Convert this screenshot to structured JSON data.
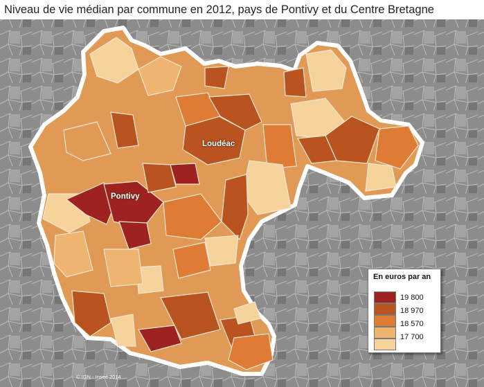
{
  "title": "Niveau de vie médian par commune en 2012, pays de Pontivy et du Centre Bretagne",
  "map": {
    "places": [
      {
        "name": "Loudéac"
      },
      {
        "name": "Pontivy"
      }
    ],
    "legend": {
      "title": "En euros par an",
      "classes": [
        {
          "label": "19 800",
          "color": "#9e2320"
        },
        {
          "label": "18 970",
          "color": "#b9531f"
        },
        {
          "label": "18 570",
          "color": "#de7b35"
        },
        {
          "label": "17 700",
          "color": "#eeb570"
        }
      ],
      "lightest_color": "#f5d39b"
    },
    "credit": "© IGN - Insee 2014",
    "background_color": "#8a8a8a",
    "border_color": "#ffffff"
  }
}
